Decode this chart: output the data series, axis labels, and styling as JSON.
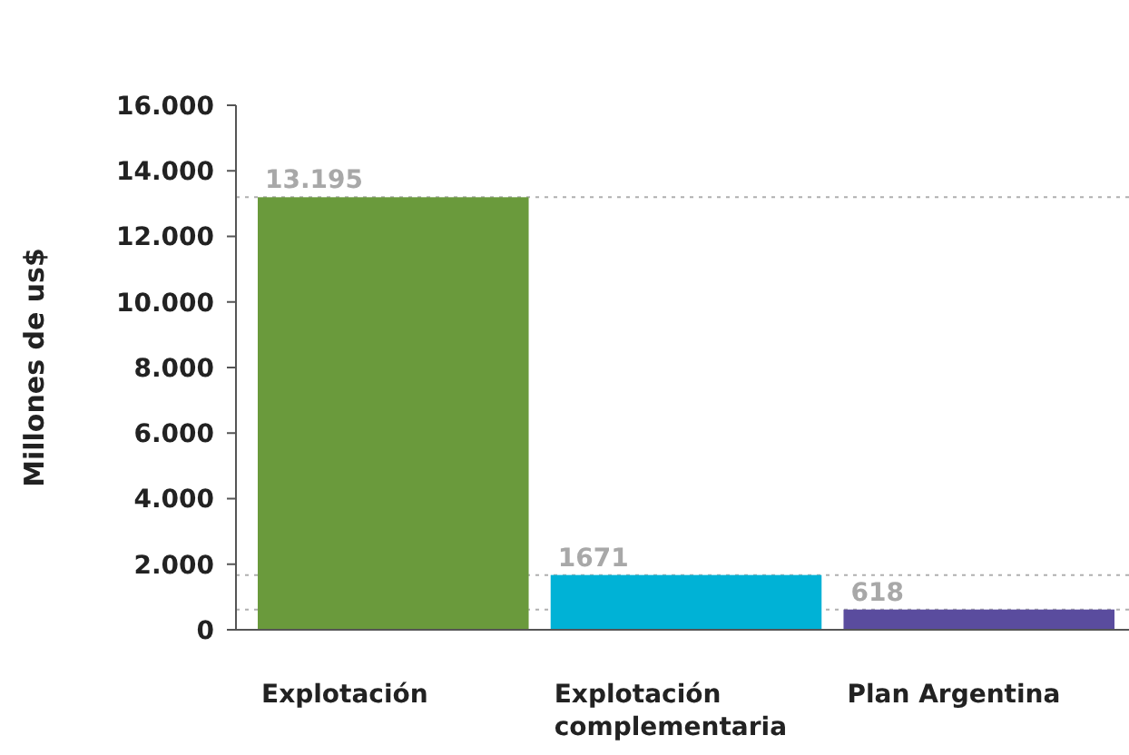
{
  "chart_data": {
    "type": "bar",
    "ylabel": "Millones de us$",
    "categories": [
      "Explotación",
      "Explotación complementaria",
      "Plan Argentina"
    ],
    "values": [
      13195,
      1671,
      618
    ],
    "colors": [
      "#6a9a3c",
      "#00b2d6",
      "#5a4c9e"
    ],
    "value_labels": [
      "13.195",
      "1671",
      "618"
    ],
    "ylim": [
      0,
      16000
    ],
    "yticks": [
      {
        "value": 0,
        "label": "0"
      },
      {
        "value": 2000,
        "label": "2.000"
      },
      {
        "value": 4000,
        "label": "4.000"
      },
      {
        "value": 6000,
        "label": "6.000"
      },
      {
        "value": 8000,
        "label": "8.000"
      },
      {
        "value": 10000,
        "label": "10.000"
      },
      {
        "value": 12000,
        "label": "12.000"
      },
      {
        "value": 14000,
        "label": "14.000"
      },
      {
        "value": 16000,
        "label": "16.000"
      }
    ],
    "ref_lines": [
      {
        "axis": "y",
        "value": 13195,
        "color": "#b0b0b0",
        "line_style": "dotted"
      },
      {
        "axis": "y",
        "value": 1671,
        "color": "#b0b0b0",
        "line_style": "dotted"
      },
      {
        "axis": "y",
        "value": 618,
        "color": "#b0b0b0",
        "line_style": "dotted"
      }
    ],
    "grid": false
  }
}
